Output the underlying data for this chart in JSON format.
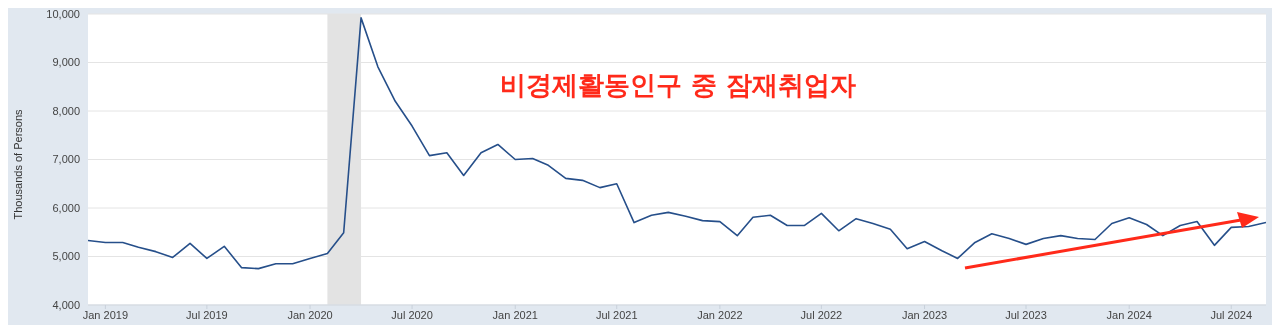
{
  "chart_data": {
    "type": "line",
    "ylabel": "Thousands of Persons",
    "annotations": [
      "비경제활동인구 중 잠재취업자"
    ],
    "x": [
      "2018-12",
      "2019-01",
      "2019-02",
      "2019-03",
      "2019-04",
      "2019-05",
      "2019-06",
      "2019-07",
      "2019-08",
      "2019-09",
      "2019-10",
      "2019-11",
      "2019-12",
      "2020-01",
      "2020-02",
      "2020-03",
      "2020-04",
      "2020-05",
      "2020-06",
      "2020-07",
      "2020-08",
      "2020-09",
      "2020-10",
      "2020-11",
      "2020-12",
      "2021-01",
      "2021-02",
      "2021-03",
      "2021-04",
      "2021-05",
      "2021-06",
      "2021-07",
      "2021-08",
      "2021-09",
      "2021-10",
      "2021-11",
      "2021-12",
      "2022-01",
      "2022-02",
      "2022-03",
      "2022-04",
      "2022-05",
      "2022-06",
      "2022-07",
      "2022-08",
      "2022-09",
      "2022-10",
      "2022-11",
      "2022-12",
      "2023-01",
      "2023-02",
      "2023-03",
      "2023-04",
      "2023-05",
      "2023-06",
      "2023-07",
      "2023-08",
      "2023-09",
      "2023-10",
      "2023-11",
      "2023-12",
      "2024-01",
      "2024-02",
      "2024-03",
      "2024-04",
      "2024-05",
      "2024-06",
      "2024-07",
      "2024-08",
      "2024-09"
    ],
    "series": [
      {
        "color": "#264f8a",
        "values": [
          5330,
          5290,
          5290,
          5190,
          5100,
          4980,
          5270,
          4960,
          5210,
          4770,
          4750,
          4850,
          4850,
          4960,
          5060,
          5490,
          9920,
          8910,
          8200,
          7690,
          7080,
          7140,
          6670,
          7140,
          7310,
          7000,
          7020,
          6880,
          6610,
          6570,
          6420,
          6500,
          5700,
          5850,
          5910,
          5830,
          5740,
          5720,
          5430,
          5810,
          5850,
          5640,
          5640,
          5890,
          5530,
          5780,
          5680,
          5560,
          5160,
          5310,
          5120,
          4960,
          5290,
          5470,
          5370,
          5250,
          5370,
          5430,
          5370,
          5350,
          5680,
          5800,
          5660,
          5430,
          5640,
          5720,
          5230,
          5600,
          5620,
          5700
        ]
      }
    ],
    "xlim": [
      "2018-12",
      "2024-09"
    ],
    "xticks": [
      {
        "value": "2019-01",
        "label": "Jan 2019"
      },
      {
        "value": "2019-07",
        "label": "Jul 2019"
      },
      {
        "value": "2020-01",
        "label": "Jan 2020"
      },
      {
        "value": "2020-07",
        "label": "Jul 2020"
      },
      {
        "value": "2021-01",
        "label": "Jan 2021"
      },
      {
        "value": "2021-07",
        "label": "Jul 2021"
      },
      {
        "value": "2022-01",
        "label": "Jan 2022"
      },
      {
        "value": "2022-07",
        "label": "Jul 2022"
      },
      {
        "value": "2023-01",
        "label": "Jan 2023"
      },
      {
        "value": "2023-07",
        "label": "Jul 2023"
      },
      {
        "value": "2024-01",
        "label": "Jan 2024"
      },
      {
        "value": "2024-07",
        "label": "Jul 2024"
      }
    ],
    "ylim": [
      4000,
      10000
    ],
    "yticks": [
      {
        "value": 4000,
        "label": "4,000"
      },
      {
        "value": 5000,
        "label": "5,000"
      },
      {
        "value": 6000,
        "label": "6,000"
      },
      {
        "value": 7000,
        "label": "7,000"
      },
      {
        "value": 8000,
        "label": "8,000"
      },
      {
        "value": 9000,
        "label": "9,000"
      },
      {
        "value": 10000,
        "label": "10,000"
      }
    ],
    "bands": [
      {
        "axis": "x",
        "from": "2020-02",
        "to": "2020-04",
        "color": "#e3e3e3"
      }
    ],
    "grid": "y",
    "marker": "none",
    "line_style": "solid"
  }
}
